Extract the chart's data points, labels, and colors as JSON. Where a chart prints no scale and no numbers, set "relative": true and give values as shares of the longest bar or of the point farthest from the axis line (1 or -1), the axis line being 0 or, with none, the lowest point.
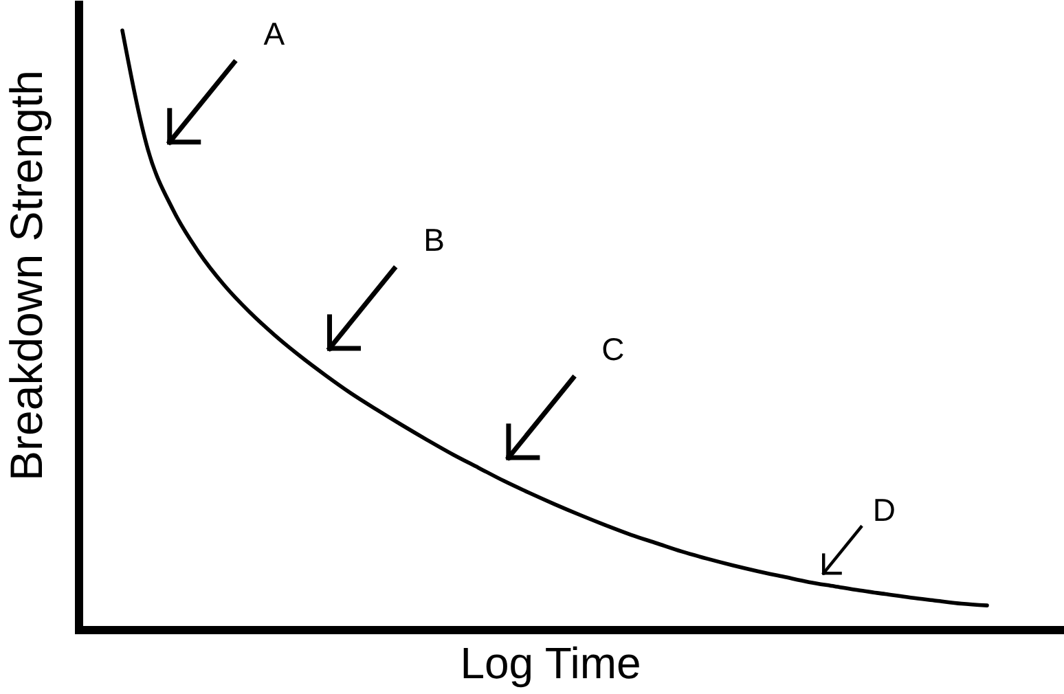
{
  "chart_data": {
    "type": "line",
    "relative": true,
    "xlabel": "Log Time",
    "ylabel": "Breakdown Strength",
    "categories": [
      null,
      null,
      null,
      null,
      null,
      null,
      null,
      null,
      null,
      null,
      null,
      null,
      null,
      null,
      null,
      null,
      null,
      null,
      null,
      null,
      null,
      null,
      null,
      null,
      null,
      null,
      null,
      null,
      null,
      null,
      null,
      null,
      null,
      null,
      null
    ],
    "values": [
      1.0,
      0.802,
      0.7,
      0.63,
      0.575,
      0.53,
      0.491,
      0.456,
      0.424,
      0.394,
      0.367,
      0.341,
      0.316,
      0.292,
      0.27,
      0.248,
      0.228,
      0.209,
      0.191,
      0.174,
      0.158,
      0.144,
      0.13,
      0.118,
      0.107,
      0.097,
      0.088,
      0.079,
      0.072,
      0.065,
      0.059,
      0.053,
      0.048,
      0.043,
      0.04
    ],
    "color": "#000000",
    "annotations": [
      "A",
      "B",
      "C",
      "D"
    ]
  }
}
